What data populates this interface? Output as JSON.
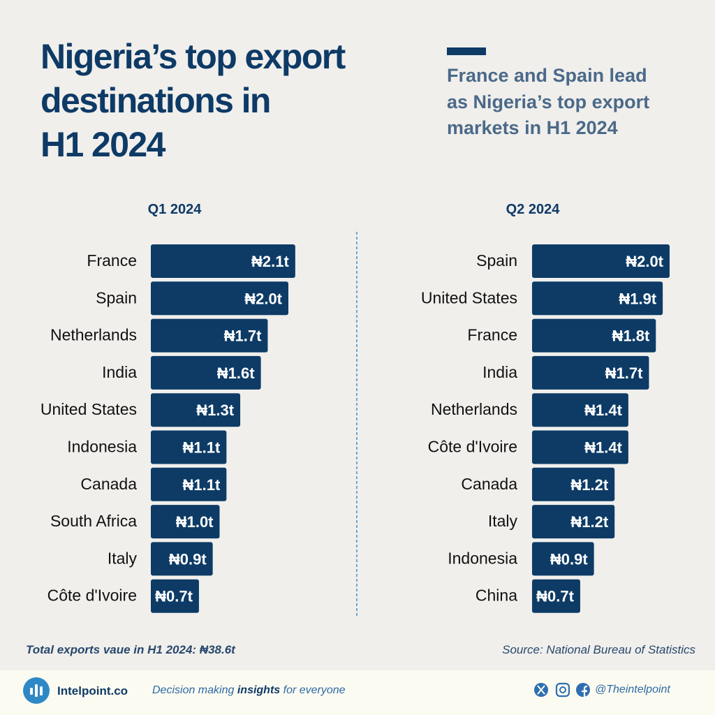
{
  "title": [
    "Nigeria’s top export",
    "destinations in",
    "H1 2024"
  ],
  "subtitle": [
    "France and Spain lead",
    "as Nigeria’s top export",
    "markets in H1 2024"
  ],
  "footnote": "Total exports vaue in H1 2024: ₦38.6t",
  "source": "Source: National Bureau of Statistics",
  "footer": {
    "brand": "Intelpoint.co",
    "tagline": [
      "Decision making",
      "insights",
      "for everyone"
    ],
    "handle": "@Theintelpoint"
  },
  "chart_data": [
    {
      "type": "bar",
      "orientation": "horizontal",
      "title": "Q1 2024",
      "color": "#0d3b66",
      "categories": [
        "France",
        "Spain",
        "Netherlands",
        "India",
        "United States",
        "Indonesia",
        "Canada",
        "South Africa",
        "Italy",
        "Côte d'Ivoire"
      ],
      "values": [
        2.1,
        2.0,
        1.7,
        1.6,
        1.3,
        1.1,
        1.1,
        1.0,
        0.9,
        0.7
      ],
      "value_labels": [
        "₦2.1t",
        "₦2.0t",
        "₦1.7t",
        "₦1.6t",
        "₦1.3t",
        "₦1.1t",
        "₦1.1t",
        "₦1.0t",
        "₦0.9t",
        "₦0.7t"
      ]
    },
    {
      "type": "bar",
      "orientation": "horizontal",
      "title": "Q2 2024",
      "color": "#0d3b66",
      "categories": [
        "Spain",
        "United States",
        "France",
        "India",
        "Netherlands",
        "Côte d'Ivoire",
        "Canada",
        "Italy",
        "Indonesia",
        "China"
      ],
      "values": [
        2.0,
        1.9,
        1.8,
        1.7,
        1.4,
        1.4,
        1.2,
        1.2,
        0.9,
        0.7
      ],
      "value_labels": [
        "₦2.0t",
        "₦1.9t",
        "₦1.8t",
        "₦1.7t",
        "₦1.4t",
        "₦1.4t",
        "₦1.2t",
        "₦1.2t",
        "₦0.9t",
        "₦0.7t"
      ]
    }
  ]
}
